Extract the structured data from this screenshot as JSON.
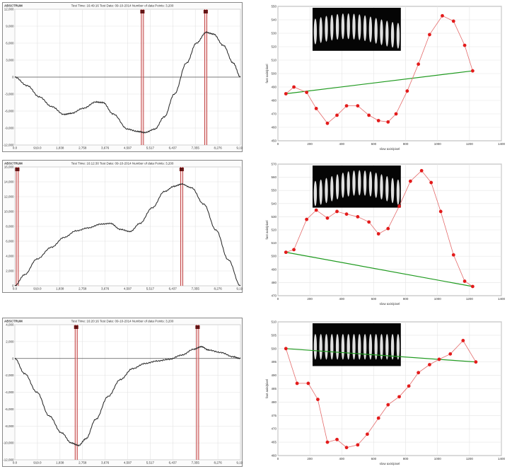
{
  "chart_data": [
    {
      "type": "line",
      "panel": "left-1",
      "corner_label": "ABSCTRUM",
      "title": "Test Time: 16:49:16  Test Date: 09-10-2014  Number of data Points: 3,200",
      "yticks": [
        "12,000",
        "9,000",
        "6,000",
        "3,000",
        "0",
        "-3,000",
        "-6,000",
        "-9,000",
        "-12,000"
      ],
      "xticks": [
        "0.0",
        "919.0",
        "1,838",
        "2,758",
        "3,676",
        "4,597",
        "5,517",
        "6,437",
        "7,355",
        "8,276",
        "9,196"
      ],
      "ylim": [
        -12000,
        12000
      ],
      "xlim": [
        0,
        9196
      ],
      "cursor_labels": [
        "1",
        "2"
      ],
      "cursors": [
        5200,
        7780
      ],
      "series": [
        {
          "points": [
            [
              0,
              0
            ],
            [
              500,
              -1500
            ],
            [
              1000,
              -3500
            ],
            [
              1500,
              -5200
            ],
            [
              2000,
              -6600
            ],
            [
              2300,
              -6400
            ],
            [
              2800,
              -5500
            ],
            [
              3300,
              -4400
            ],
            [
              3600,
              -4500
            ],
            [
              4000,
              -6500
            ],
            [
              4600,
              -9200
            ],
            [
              5000,
              -9600
            ],
            [
              5300,
              -9800
            ],
            [
              5700,
              -9200
            ],
            [
              6100,
              -7000
            ],
            [
              6500,
              -3000
            ],
            [
              7000,
              2500
            ],
            [
              7400,
              6000
            ],
            [
              7800,
              7900
            ],
            [
              8100,
              7600
            ],
            [
              8500,
              5600
            ],
            [
              8900,
              2500
            ],
            [
              9196,
              0
            ]
          ]
        }
      ]
    },
    {
      "type": "line",
      "panel": "left-2",
      "corner_label": "ABSCTRUM",
      "title": "Test Time: 16:12:30  Test Date: 09-10-2014  Number of data Points: 3,200",
      "yticks": [
        "16,000",
        "14,000",
        "12,000",
        "10,000",
        "8,000",
        "6,000",
        "4,000",
        "2,000",
        "0"
      ],
      "xticks": [
        "0.0",
        "919.0",
        "1,838",
        "2,758",
        "3,676",
        "4,597",
        "5,517",
        "6,437",
        "7,355",
        "8,276",
        "9,196"
      ],
      "ylim": [
        0,
        16000
      ],
      "xlim": [
        0,
        9196
      ],
      "cursor_labels": [
        "1",
        "2"
      ],
      "cursors": [
        100,
        6800
      ],
      "series": [
        {
          "points": [
            [
              0,
              0
            ],
            [
              400,
              1500
            ],
            [
              900,
              3600
            ],
            [
              1500,
              5200
            ],
            [
              2000,
              6500
            ],
            [
              2500,
              7400
            ],
            [
              3000,
              7800
            ],
            [
              3500,
              8300
            ],
            [
              3900,
              8400
            ],
            [
              4300,
              7600
            ],
            [
              4700,
              7300
            ],
            [
              5100,
              8400
            ],
            [
              5600,
              10500
            ],
            [
              6100,
              12700
            ],
            [
              6500,
              13400
            ],
            [
              6800,
              13700
            ],
            [
              7200,
              13200
            ],
            [
              7700,
              11000
            ],
            [
              8200,
              7500
            ],
            [
              8700,
              3500
            ],
            [
              9196,
              0
            ]
          ]
        }
      ]
    },
    {
      "type": "line",
      "panel": "left-3",
      "corner_label": "ABSCTRUM",
      "title": "Test Time: 16:20:16  Test Date: 09-10-2014  Number of data Points: 3,200",
      "yticks": [
        "4,000",
        "2,000",
        "0",
        "-2,000",
        "-4,000",
        "-6,000",
        "-8,000",
        "-10,000",
        "-12,000"
      ],
      "xticks": [
        "0.0",
        "919.0",
        "1,838",
        "2,758",
        "3,676",
        "4,597",
        "5,517",
        "6,437",
        "7,355",
        "8,276",
        "9,196"
      ],
      "ylim": [
        -12000,
        4000
      ],
      "xlim": [
        0,
        9196
      ],
      "cursor_labels": [
        "1",
        "2"
      ],
      "cursors": [
        2500,
        7450
      ],
      "series": [
        {
          "points": [
            [
              0,
              0
            ],
            [
              400,
              -1800
            ],
            [
              900,
              -4000
            ],
            [
              1400,
              -6800
            ],
            [
              1900,
              -8800
            ],
            [
              2300,
              -10000
            ],
            [
              2600,
              -10300
            ],
            [
              2900,
              -9500
            ],
            [
              3300,
              -7200
            ],
            [
              3800,
              -4500
            ],
            [
              4300,
              -2500
            ],
            [
              4800,
              -1200
            ],
            [
              5300,
              -600
            ],
            [
              5800,
              -300
            ],
            [
              6300,
              -100
            ],
            [
              6800,
              400
            ],
            [
              7300,
              1100
            ],
            [
              7600,
              1400
            ],
            [
              7900,
              1000
            ],
            [
              8400,
              700
            ],
            [
              8900,
              200
            ],
            [
              9196,
              0
            ]
          ]
        }
      ]
    },
    {
      "type": "scatter",
      "panel": "right-1",
      "xlabel": "slow axis/pixel",
      "ylabel": "fast axis/pixel",
      "xticks": [
        "0",
        "200",
        "400",
        "600",
        "800",
        "1000",
        "1200",
        "1400"
      ],
      "yticks": [
        "550",
        "540",
        "530",
        "520",
        "510",
        "500",
        "490",
        "480",
        "470",
        "460",
        "450"
      ],
      "xlim": [
        0,
        1400
      ],
      "ylim": [
        450,
        550
      ],
      "points": [
        [
          50,
          485
        ],
        [
          100,
          490
        ],
        [
          180,
          486
        ],
        [
          240,
          474
        ],
        [
          310,
          463
        ],
        [
          370,
          469
        ],
        [
          430,
          476
        ],
        [
          500,
          476
        ],
        [
          570,
          469
        ],
        [
          630,
          465
        ],
        [
          690,
          464
        ],
        [
          740,
          470
        ],
        [
          810,
          487
        ],
        [
          880,
          507
        ],
        [
          950,
          529
        ],
        [
          1030,
          543
        ],
        [
          1100,
          539
        ],
        [
          1170,
          521
        ],
        [
          1220,
          502
        ]
      ],
      "fit_line": [
        [
          50,
          485
        ],
        [
          1220,
          502
        ]
      ]
    },
    {
      "type": "scatter",
      "panel": "right-2",
      "xlabel": "slow axis/pixel",
      "ylabel": "fast axis/pixel",
      "xticks": [
        "0",
        "200",
        "400",
        "600",
        "800",
        "1000",
        "1200",
        "1400"
      ],
      "yticks": [
        "570",
        "560",
        "550",
        "540",
        "530",
        "520",
        "510",
        "500",
        "490",
        "480",
        "470"
      ],
      "xlim": [
        0,
        1400
      ],
      "ylim": [
        470,
        570
      ],
      "points": [
        [
          50,
          503
        ],
        [
          100,
          505
        ],
        [
          180,
          528
        ],
        [
          240,
          535
        ],
        [
          310,
          529
        ],
        [
          370,
          534
        ],
        [
          430,
          532
        ],
        [
          500,
          530
        ],
        [
          570,
          526
        ],
        [
          630,
          517
        ],
        [
          690,
          521
        ],
        [
          760,
          538
        ],
        [
          830,
          557
        ],
        [
          900,
          565
        ],
        [
          960,
          556
        ],
        [
          1020,
          534
        ],
        [
          1100,
          501
        ],
        [
          1170,
          481
        ],
        [
          1220,
          477
        ]
      ],
      "fit_line": [
        [
          50,
          503
        ],
        [
          1220,
          477
        ]
      ]
    },
    {
      "type": "scatter",
      "panel": "right-3",
      "xlabel": "slow axis/pixel",
      "ylabel": "fast axis/pixel",
      "xticks": [
        "0",
        "200",
        "400",
        "600",
        "800",
        "1000",
        "1200",
        "1400"
      ],
      "yticks": [
        "510",
        "505",
        "500",
        "495",
        "490",
        "485",
        "480",
        "475",
        "470",
        "465",
        "460"
      ],
      "xlim": [
        0,
        1400
      ],
      "ylim": [
        460,
        510
      ],
      "points": [
        [
          50,
          500
        ],
        [
          120,
          487
        ],
        [
          190,
          487
        ],
        [
          250,
          481
        ],
        [
          310,
          465
        ],
        [
          370,
          466
        ],
        [
          430,
          463
        ],
        [
          500,
          464
        ],
        [
          560,
          468
        ],
        [
          630,
          474
        ],
        [
          690,
          479
        ],
        [
          760,
          482
        ],
        [
          820,
          486
        ],
        [
          880,
          491
        ],
        [
          950,
          494
        ],
        [
          1010,
          496
        ],
        [
          1080,
          498
        ],
        [
          1160,
          503
        ],
        [
          1240,
          495
        ]
      ],
      "fit_line": [
        [
          50,
          500
        ],
        [
          1240,
          495
        ]
      ]
    }
  ]
}
